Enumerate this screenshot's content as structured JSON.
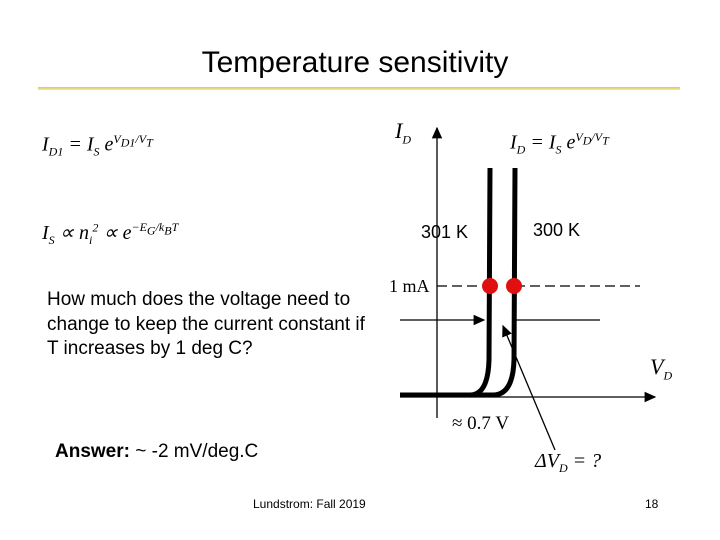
{
  "title": "Temperature sensitivity",
  "equations": {
    "diode_left": "I_D1 = I_S e^(V_D1/V_T)",
    "is_relation": "I_S ∝ n_i² ∝ e^(−E_G/k_BT)",
    "diode_right": "I_D = I_S e^(V_D/V_T)"
  },
  "graph": {
    "y_axis_label": "I_D",
    "x_axis_label": "V_D",
    "current_level": "1 mA",
    "knee_voltage": "≈ 0.7 V",
    "delta_v": "ΔV_D = ?",
    "curve_labels": [
      "301 K",
      "300 K"
    ],
    "marker_color": "#e01010"
  },
  "question": "How much does the voltage need to change to keep the current constant if T increases by 1 deg C?",
  "answer": {
    "label": "Answer:",
    "value": " ~ -2 mV/deg.C"
  },
  "footer": "Lundstrom: Fall 2019",
  "page_number": "18"
}
